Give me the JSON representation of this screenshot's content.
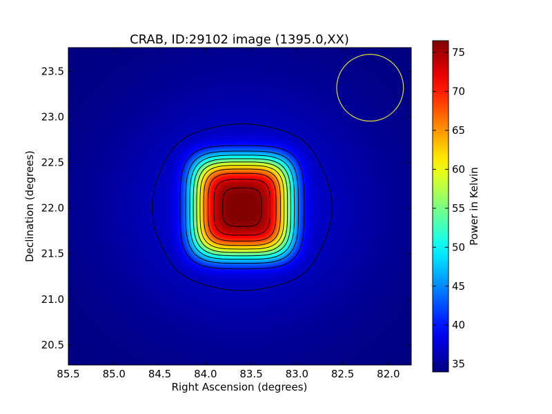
{
  "chart_data": {
    "type": "heatmap",
    "title": "CRAB, ID:29102 image (1395.0,XX)",
    "xlabel": "Right Ascension (degrees)",
    "ylabel": "Declination (degrees)",
    "xlim": [
      85.5,
      81.75
    ],
    "ylim": [
      20.28,
      23.76
    ],
    "x_ticks": [
      "85.5",
      "85.0",
      "84.5",
      "84.0",
      "83.5",
      "83.0",
      "82.5",
      "82.0"
    ],
    "x_tick_values": [
      85.5,
      85.0,
      84.5,
      84.0,
      83.5,
      83.0,
      82.5,
      82.0
    ],
    "y_ticks": [
      "20.5",
      "21.0",
      "21.5",
      "22.0",
      "22.5",
      "23.0",
      "23.5"
    ],
    "y_tick_values": [
      20.5,
      21.0,
      21.5,
      22.0,
      22.5,
      23.0,
      23.5
    ],
    "colormap": "jet",
    "colorbar": {
      "label": "Power in Kelvin",
      "range": [
        34,
        76.5
      ],
      "ticks": [
        "35",
        "40",
        "45",
        "50",
        "55",
        "60",
        "65",
        "70",
        "75"
      ],
      "tick_values": [
        35,
        40,
        45,
        50,
        55,
        60,
        65,
        70,
        75
      ]
    },
    "source": {
      "ra": 83.6,
      "dec": 22.01,
      "peak_kelvin": 76.5,
      "background_kelvin": 34
    },
    "contour_levels": [
      36.5,
      40.5,
      44.5,
      48.5,
      52.5,
      56.5,
      60.5,
      64.5,
      68.5,
      72.5,
      75.5
    ],
    "beam_circle": {
      "ra": 82.2,
      "dec": 23.32,
      "radius_deg": 0.365,
      "color": "#e0dc3a"
    },
    "grid": false
  }
}
